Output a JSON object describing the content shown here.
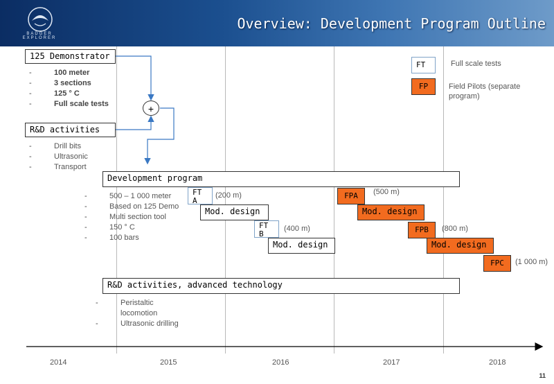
{
  "header": {
    "title": "Overview: Development Program Outline",
    "logo_text": "BADGER EXPLORER",
    "background_color": "#1b4f8f"
  },
  "demonstrator": {
    "label": "125 Demonstrator",
    "items": [
      "100 meter",
      "3 sections",
      "125 ° C",
      "Full scale tests"
    ]
  },
  "rd_activities": {
    "label": "R&D activities",
    "items": [
      "Drill bits",
      "Ultrasonic",
      "Transport"
    ]
  },
  "merge_symbol": "+",
  "legend": {
    "ft_label": "FT",
    "ft_text": "Full scale tests",
    "fp_label": "FP",
    "fp_text_1": "Field Pilots (separate",
    "fp_text_2": "program)"
  },
  "development_program": {
    "label": "Development program",
    "items": [
      "500 – 1 000 meter",
      "Based on 125 Demo",
      "Multi section tool",
      "150 ° C",
      "100 bars"
    ]
  },
  "ft_a": {
    "line1": "FT",
    "line2": "A",
    "distance": "(200 m)"
  },
  "mod_design_1": "Mod. design",
  "ft_b": {
    "line1": "FT",
    "line2": "B",
    "distance": "(400 m)"
  },
  "mod_design_2": "Mod. design",
  "fpa": {
    "label": "FPA",
    "distance": "(500 m)"
  },
  "mod_design_3": "Mod. design",
  "fpb": {
    "label": "FPB",
    "distance": "(800 m)"
  },
  "mod_design_4": "Mod. design",
  "fpc": {
    "label": "FPC",
    "distance": "(1 000 m)"
  },
  "advanced": {
    "label": "R&D activities, advanced technology",
    "items": [
      "Peristaltic",
      "locomotion",
      "Ultrasonic drilling"
    ]
  },
  "timeline": {
    "years": [
      "2014",
      "2015",
      "2016",
      "2017",
      "2018"
    ]
  },
  "dash": "-",
  "page_number": "11",
  "colors": {
    "field_pilot": "#f26b1f",
    "full_scale_border": "#7fa3c8",
    "arrow_blue": "#3a78c3"
  }
}
